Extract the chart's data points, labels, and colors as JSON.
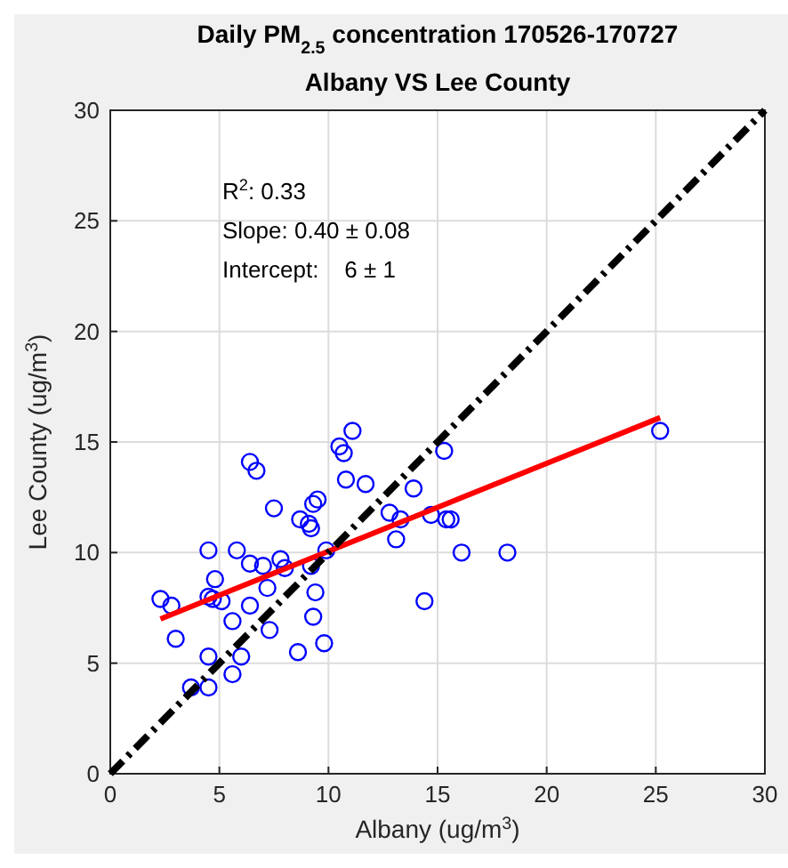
{
  "chart_data": {
    "type": "scatter",
    "title": "Daily PM$_{2.5}$ concentration 170526-170727",
    "subtitle": "Albany VS Lee County",
    "xlabel": "Albany (ug/m$^{3}$)",
    "ylabel": "Lee County (ug/m$^{3}$)",
    "xlim": [
      0,
      30
    ],
    "ylim": [
      0,
      30
    ],
    "xticks": [
      0,
      5,
      10,
      15,
      20,
      25,
      30
    ],
    "yticks": [
      0,
      5,
      10,
      15,
      20,
      25,
      30
    ],
    "grid": true,
    "annotations": [
      "R$^{2}$: 0.33",
      "Slope: 0.40 ± 0.08",
      "Intercept:    6 ± 1"
    ],
    "series": [
      {
        "color": "#0000ff",
        "marker": "circle",
        "x": [
          2.3,
          2.8,
          3.0,
          3.7,
          4.5,
          4.5,
          4.5,
          4.8,
          4.5,
          4.7,
          5.1,
          5.6,
          5.6,
          6.0,
          5.8,
          6.4,
          6.7,
          6.4,
          6.4,
          7.0,
          7.2,
          7.3,
          7.5,
          7.8,
          8.0,
          8.6,
          8.7,
          9.1,
          9.2,
          9.3,
          9.5,
          9.2,
          9.4,
          9.3,
          9.8,
          9.9,
          10.5,
          10.7,
          11.1,
          10.8,
          11.7,
          12.8,
          13.3,
          13.1,
          13.9,
          14.4,
          14.7,
          15.3,
          15.6,
          15.4,
          16.1,
          18.2,
          25.2
        ],
        "values": [
          7.9,
          7.6,
          6.1,
          3.9,
          3.9,
          5.3,
          10.1,
          8.8,
          8.0,
          7.9,
          7.8,
          4.5,
          6.9,
          5.3,
          10.1,
          14.1,
          13.7,
          7.6,
          9.5,
          9.4,
          8.4,
          6.5,
          12.0,
          9.7,
          9.3,
          5.5,
          11.5,
          11.3,
          11.1,
          12.2,
          12.4,
          9.4,
          8.2,
          7.1,
          5.9,
          10.1,
          14.8,
          14.5,
          15.5,
          13.3,
          13.1,
          11.8,
          11.5,
          10.6,
          12.9,
          7.8,
          11.7,
          14.6,
          11.5,
          11.5,
          10.0,
          10.0,
          15.5
        ]
      },
      {
        "type": "line",
        "color": "#ff0000",
        "line_style": "solid",
        "x": [
          2.3,
          25.2
        ],
        "values": [
          7.0,
          16.1
        ]
      },
      {
        "type": "line",
        "color": "#000000",
        "line_style": "dashed",
        "x": [
          0,
          30
        ],
        "values": [
          0,
          30
        ]
      }
    ]
  }
}
